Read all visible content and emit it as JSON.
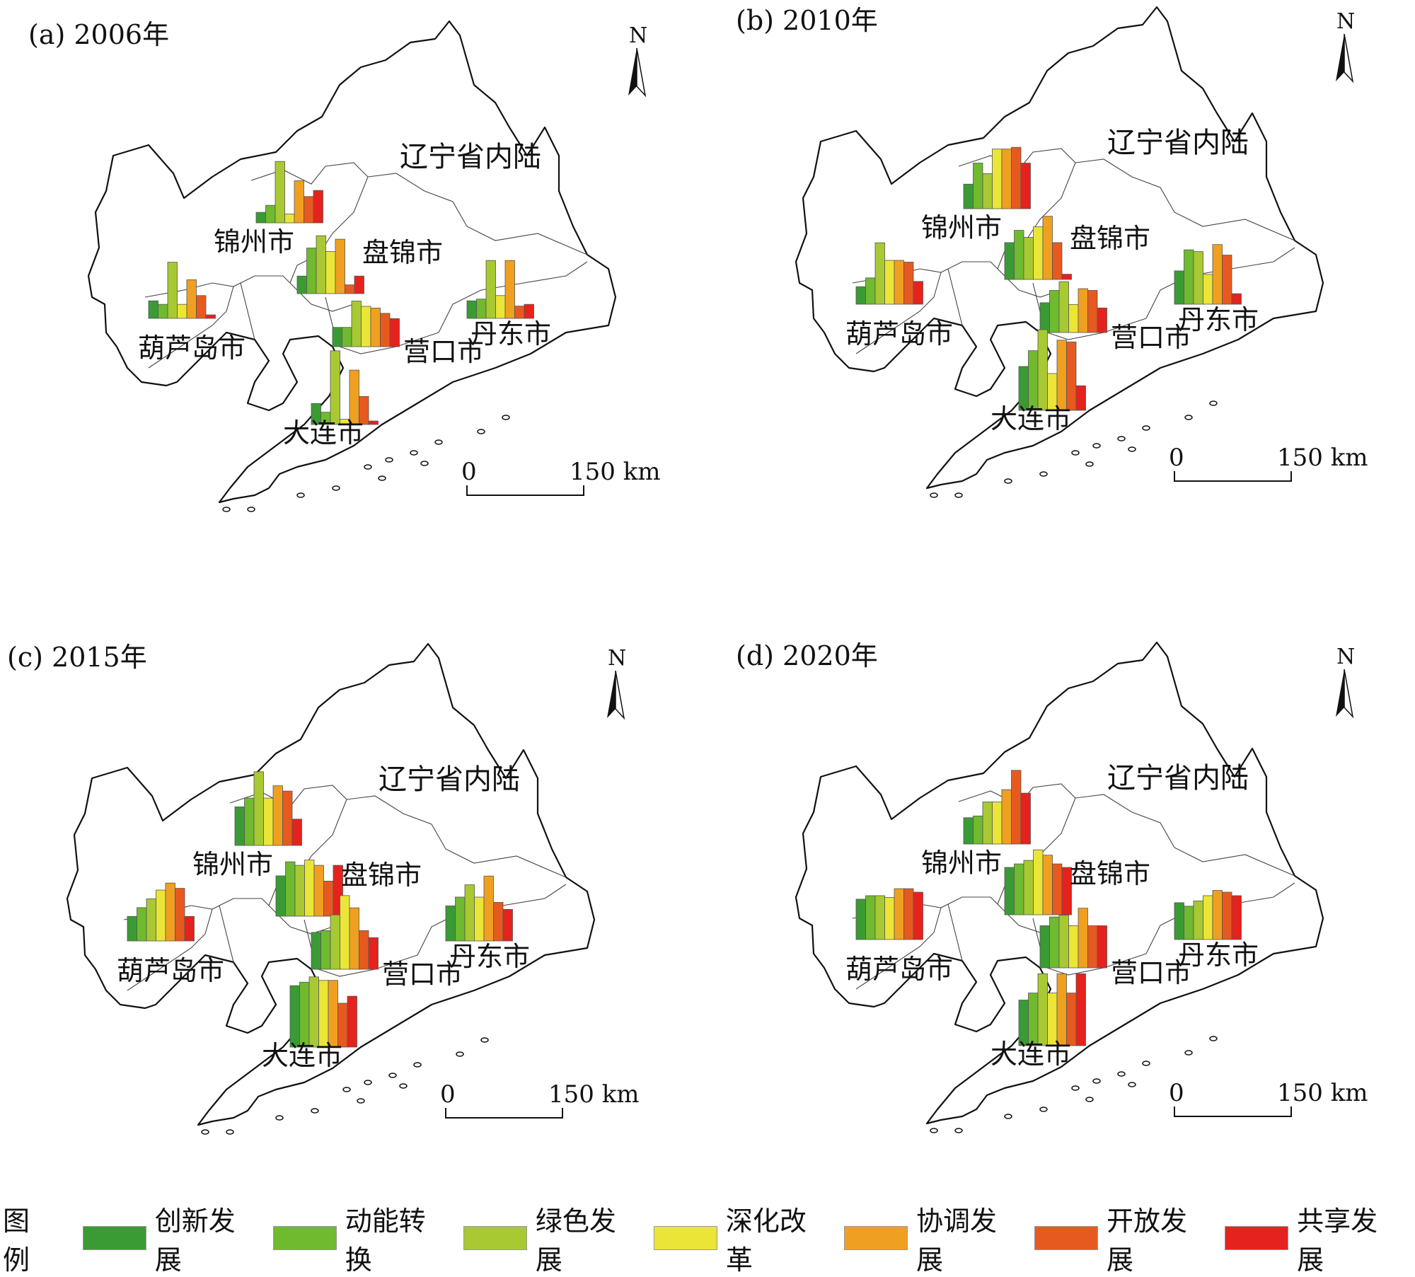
{
  "colors": [
    "#3a9b34",
    "#6fba2e",
    "#a8c932",
    "#ebe537",
    "#f0a020",
    "#e65a20",
    "#e5221e"
  ],
  "legend": {
    "title": "图例",
    "items": [
      "创新发展",
      "动能转换",
      "绿色发展",
      "深化改革",
      "协调发展",
      "开放发展",
      "共享发展"
    ]
  },
  "region_label": "辽宁省内陆",
  "north_label": "N",
  "scale": {
    "zero": "0",
    "end": "150 km"
  },
  "panels": [
    {
      "title": "(a) 2006年",
      "cities": [
        {
          "name": "锦州市",
          "values": [
            0.12,
            0.2,
            0.7,
            0.1,
            0.48,
            0.3,
            0.37
          ]
        },
        {
          "name": "盘锦市",
          "values": [
            0.2,
            0.52,
            0.66,
            0.48,
            0.62,
            0.1,
            0.2
          ]
        },
        {
          "name": "葫芦岛市",
          "values": [
            0.2,
            0.16,
            0.64,
            0.16,
            0.44,
            0.26,
            0.04
          ]
        },
        {
          "name": "营口市",
          "values": [
            0.22,
            0.22,
            0.52,
            0.46,
            0.44,
            0.38,
            0.32
          ]
        },
        {
          "name": "丹东市",
          "values": [
            0.2,
            0.22,
            0.66,
            0.26,
            0.66,
            0.14,
            0.16
          ]
        },
        {
          "name": "大连市",
          "values": [
            0.24,
            0.14,
            0.84,
            0.06,
            0.62,
            0.32,
            0.04
          ]
        }
      ]
    },
    {
      "title": "(b) 2010年",
      "cities": [
        {
          "name": "锦州市",
          "values": [
            0.28,
            0.52,
            0.4,
            0.68,
            0.68,
            0.7,
            0.52
          ]
        },
        {
          "name": "盘锦市",
          "values": [
            0.42,
            0.56,
            0.48,
            0.6,
            0.72,
            0.42,
            0.06
          ]
        },
        {
          "name": "葫芦岛市",
          "values": [
            0.2,
            0.3,
            0.7,
            0.5,
            0.5,
            0.48,
            0.26
          ]
        },
        {
          "name": "营口市",
          "values": [
            0.34,
            0.48,
            0.58,
            0.32,
            0.5,
            0.48,
            0.28
          ]
        },
        {
          "name": "丹东市",
          "values": [
            0.38,
            0.62,
            0.6,
            0.34,
            0.68,
            0.56,
            0.12
          ]
        },
        {
          "name": "大连市",
          "values": [
            0.5,
            0.68,
            0.92,
            0.42,
            0.8,
            0.78,
            0.28
          ]
        }
      ]
    },
    {
      "title": "(c) 2015年",
      "cities": [
        {
          "name": "锦州市",
          "values": [
            0.44,
            0.54,
            0.84,
            0.54,
            0.68,
            0.62,
            0.3
          ]
        },
        {
          "name": "盘锦市",
          "values": [
            0.46,
            0.62,
            0.58,
            0.64,
            0.58,
            0.4,
            0.58
          ]
        },
        {
          "name": "葫芦岛市",
          "values": [
            0.28,
            0.38,
            0.48,
            0.58,
            0.66,
            0.6,
            0.28
          ]
        },
        {
          "name": "营口市",
          "values": [
            0.42,
            0.44,
            0.62,
            0.84,
            0.7,
            0.44,
            0.36
          ]
        },
        {
          "name": "丹东市",
          "values": [
            0.4,
            0.5,
            0.64,
            0.5,
            0.74,
            0.44,
            0.36
          ]
        },
        {
          "name": "大连市",
          "values": [
            0.7,
            0.74,
            0.8,
            0.76,
            0.76,
            0.5,
            0.58
          ]
        }
      ]
    },
    {
      "title": "(d) 2020年",
      "cities": [
        {
          "name": "锦州市",
          "values": [
            0.3,
            0.32,
            0.48,
            0.48,
            0.62,
            0.84,
            0.58
          ]
        },
        {
          "name": "盘锦市",
          "values": [
            0.54,
            0.58,
            0.62,
            0.74,
            0.68,
            0.58,
            0.54
          ]
        },
        {
          "name": "葫芦岛市",
          "values": [
            0.46,
            0.5,
            0.5,
            0.48,
            0.58,
            0.58,
            0.54
          ]
        },
        {
          "name": "营口市",
          "values": [
            0.48,
            0.58,
            0.6,
            0.48,
            0.68,
            0.48,
            0.48
          ]
        },
        {
          "name": "丹东市",
          "values": [
            0.42,
            0.38,
            0.44,
            0.5,
            0.56,
            0.54,
            0.5
          ]
        },
        {
          "name": "大连市",
          "values": [
            0.52,
            0.6,
            0.82,
            0.6,
            0.82,
            0.6,
            0.82
          ]
        }
      ]
    }
  ]
}
